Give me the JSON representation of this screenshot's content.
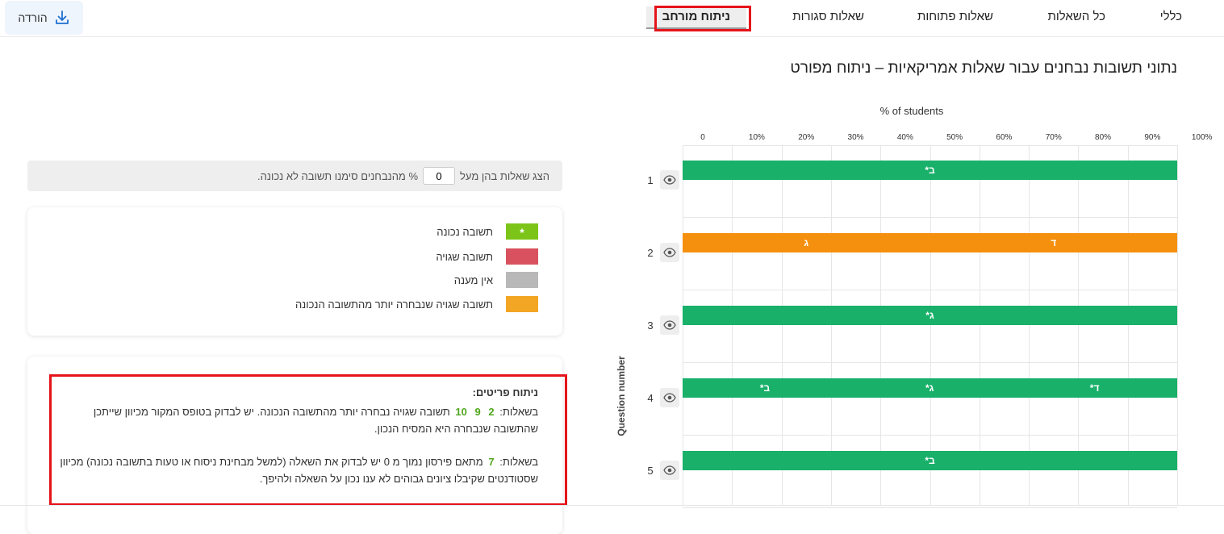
{
  "tabs": [
    {
      "label": "כללי"
    },
    {
      "label": "כל השאלות"
    },
    {
      "label": "שאלות פתוחות"
    },
    {
      "label": "שאלות סגורות"
    },
    {
      "label": "ניתוח מורחב"
    }
  ],
  "download_label": "הורדה",
  "heading": "נתוני תשובות נבחנים עבור שאלות אמריקאיות – ניתוח מפורט",
  "filter": {
    "prefix": "הצג שאלות בהן מעל",
    "value": "0",
    "suffix": "% מהנבחנים סימנו תשובה לא נכונה."
  },
  "legend": [
    {
      "label": "תשובה נכונה",
      "color": "#7cc518",
      "symbol": "*"
    },
    {
      "label": "תשובה שגויה",
      "color": "#d9515e",
      "symbol": ""
    },
    {
      "label": "אין מענה",
      "color": "#b8b8b8",
      "symbol": ""
    },
    {
      "label": "תשובה שגויה שנבחרה יותר מהתשובה הנכונה",
      "color": "#f3a623",
      "symbol": ""
    }
  ],
  "detail": {
    "title": "ניתוח פריטים:",
    "p1_prefix": "בשאלות:",
    "p1_questions": [
      "2",
      "9",
      "10"
    ],
    "p1_text": "תשובה שגויה נבחרה יותר מהתשובה הנכונה. יש לבדוק בטופס המקור מכיוון שייתכן שהתשובה שנבחרה היא המסיח הנכון.",
    "p2_prefix": "בשאלות:",
    "p2_questions": [
      "7"
    ],
    "p2_text": "מתאם פירסון נמוך מ 0 יש לבדוק את השאלה (למשל מבחינת ניסוח או טעות בתשובה נכונה) מכיוון שסטודנטים שקיבלו ציונים גבוהים לא ענו נכון על השאלה ולהיפך."
  },
  "colors": {
    "correct_bar": "#19b06a",
    "wrong_preferred_bar": "#f5900f",
    "active_tab_highlight": "#e5141a"
  },
  "chart_data": {
    "type": "bar",
    "orientation": "horizontal",
    "title": "% of students",
    "ylabel": "Question number",
    "x_ticks": [
      "0",
      "10%",
      "20%",
      "30%",
      "40%",
      "50%",
      "60%",
      "70%",
      "80%",
      "90%",
      "100%"
    ],
    "xlim": [
      0,
      100
    ],
    "questions": [
      {
        "number": "1",
        "segments": [
          {
            "label": "*ב",
            "value": 100,
            "kind": "correct"
          }
        ]
      },
      {
        "number": "2",
        "segments": [
          {
            "label": "ג",
            "value": 50,
            "kind": "wrong_preferred"
          },
          {
            "label": "ד",
            "value": 50,
            "kind": "wrong_preferred"
          }
        ]
      },
      {
        "number": "3",
        "segments": [
          {
            "label": "*ג",
            "value": 100,
            "kind": "correct"
          }
        ]
      },
      {
        "number": "4",
        "segments": [
          {
            "label": "*ב",
            "value": 33.3,
            "kind": "correct"
          },
          {
            "label": "*ג",
            "value": 33.3,
            "kind": "correct"
          },
          {
            "label": "*ד",
            "value": 33.4,
            "kind": "correct"
          }
        ]
      },
      {
        "number": "5",
        "segments": [
          {
            "label": "*ב",
            "value": 100,
            "kind": "correct"
          }
        ]
      }
    ]
  }
}
